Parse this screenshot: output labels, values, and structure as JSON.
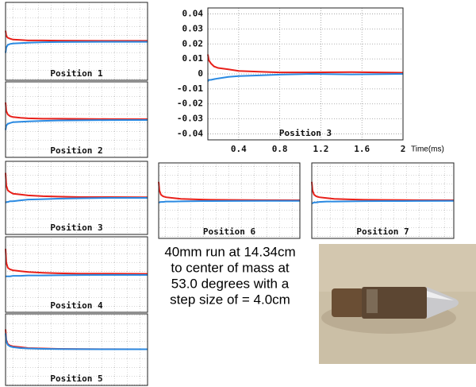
{
  "chart_data": [
    {
      "type": "line",
      "title": "Position 1",
      "x": [
        0.1,
        0.11,
        0.13,
        0.16,
        0.2,
        0.3,
        0.4,
        0.6,
        0.8,
        1.1,
        1.5,
        2.0
      ],
      "xlim": [
        0.1,
        2
      ],
      "ylim": [
        -0.044,
        0.044
      ],
      "grid": true,
      "series": [
        {
          "color": "#e8201a",
          "values": [
            0.012,
            0.006,
            0.004,
            0.003,
            0.002,
            0.0015,
            0.001,
            0.001,
            0.0008,
            0.0006,
            0.0005,
            0.0005
          ]
        },
        {
          "color": "#2b8ae2",
          "values": [
            -0.013,
            -0.007,
            -0.004,
            -0.003,
            -0.0025,
            -0.002,
            -0.0015,
            -0.001,
            -0.0008,
            -0.0006,
            -0.0005,
            -0.0005
          ]
        }
      ]
    },
    {
      "type": "line",
      "title": "Position 2",
      "x": [
        0.1,
        0.11,
        0.13,
        0.16,
        0.2,
        0.3,
        0.4,
        0.6,
        0.8,
        1.1,
        1.5,
        2.0
      ],
      "xlim": [
        0.1,
        2
      ],
      "ylim": [
        -0.044,
        0.044
      ],
      "grid": true,
      "series": [
        {
          "color": "#e8201a",
          "values": [
            0.02,
            0.01,
            0.006,
            0.004,
            0.003,
            0.002,
            0.0015,
            0.001,
            0.001,
            0.0008,
            0.0006,
            0.0005
          ]
        },
        {
          "color": "#2b8ae2",
          "values": [
            -0.012,
            -0.007,
            -0.005,
            -0.004,
            -0.003,
            -0.0025,
            -0.002,
            -0.0015,
            -0.001,
            -0.0008,
            -0.0006,
            -0.0005
          ]
        }
      ]
    },
    {
      "type": "line",
      "title": "Position 3",
      "x": [
        0.1,
        0.11,
        0.13,
        0.16,
        0.2,
        0.3,
        0.4,
        0.6,
        0.8,
        1.1,
        1.5,
        2.0
      ],
      "xlim": [
        0.1,
        2
      ],
      "ylim": [
        -0.044,
        0.044
      ],
      "grid": true,
      "series": [
        {
          "color": "#e8201a",
          "values": [
            0.03,
            0.015,
            0.009,
            0.007,
            0.005,
            0.004,
            0.003,
            0.002,
            0.0015,
            0.001,
            0.001,
            0.0008
          ]
        },
        {
          "color": "#2b8ae2",
          "values": [
            -0.006,
            -0.005,
            -0.005,
            -0.004,
            -0.004,
            -0.003,
            -0.002,
            -0.0015,
            -0.001,
            -0.0005,
            0,
            0
          ]
        }
      ]
    },
    {
      "type": "line",
      "title": "Position 4",
      "x": [
        0.1,
        0.11,
        0.13,
        0.16,
        0.2,
        0.3,
        0.4,
        0.6,
        0.8,
        1.1,
        1.5,
        2.0
      ],
      "xlim": [
        0.1,
        2
      ],
      "ylim": [
        -0.044,
        0.044
      ],
      "grid": true,
      "series": [
        {
          "color": "#e8201a",
          "values": [
            0.03,
            0.014,
            0.008,
            0.006,
            0.005,
            0.004,
            0.003,
            0.002,
            0.0015,
            0.001,
            0.001,
            0.0008
          ]
        },
        {
          "color": "#2b8ae2",
          "values": [
            -0.002,
            -0.002,
            -0.002,
            -0.002,
            -0.0015,
            -0.0015,
            -0.001,
            -0.001,
            -0.0008,
            -0.0006,
            -0.0005,
            -0.0005
          ]
        }
      ]
    },
    {
      "type": "line",
      "title": "Position 5",
      "x": [
        0.1,
        0.11,
        0.13,
        0.16,
        0.2,
        0.3,
        0.4,
        0.6,
        0.8,
        1.1,
        1.5,
        2.0
      ],
      "xlim": [
        0.1,
        2
      ],
      "ylim": [
        -0.044,
        0.044
      ],
      "grid": true,
      "series": [
        {
          "color": "#e8201a",
          "values": [
            0.025,
            0.012,
            0.007,
            0.005,
            0.004,
            0.003,
            0.002,
            0.0015,
            0.001,
            0.0008,
            0.0006,
            0.0005
          ]
        },
        {
          "color": "#2b8ae2",
          "values": [
            0.02,
            0.01,
            0.006,
            0.004,
            0.003,
            0.002,
            0.0015,
            0.001,
            0.0008,
            0.0006,
            0.0005,
            0.0005
          ]
        }
      ]
    },
    {
      "type": "line",
      "title": "Position 3",
      "x": [
        0.1,
        0.11,
        0.13,
        0.16,
        0.2,
        0.3,
        0.4,
        0.6,
        0.8,
        1.1,
        1.5,
        2.0
      ],
      "xlim": [
        0.1,
        2
      ],
      "ylim": [
        -0.044,
        0.044
      ],
      "grid": true,
      "x_label": "Time(ms)",
      "xticks": [
        0.4,
        0.8,
        1.2,
        1.6,
        2
      ],
      "yticks": [
        -0.04,
        -0.03,
        -0.02,
        -0.01,
        0,
        0.01,
        0.02,
        0.03,
        0.04
      ],
      "series": [
        {
          "color": "#e8201a",
          "values": [
            0.013,
            0.009,
            0.007,
            0.005,
            0.004,
            0.003,
            0.002,
            0.0015,
            0.001,
            0.001,
            0.0012,
            0.0008
          ]
        },
        {
          "color": "#2b8ae2",
          "values": [
            -0.005,
            -0.004,
            -0.004,
            -0.0035,
            -0.003,
            -0.002,
            -0.0015,
            -0.001,
            -0.0005,
            0,
            -0.0003,
            0
          ]
        }
      ]
    },
    {
      "type": "line",
      "title": "Position 6",
      "x": [
        0.1,
        0.11,
        0.13,
        0.16,
        0.2,
        0.3,
        0.4,
        0.6,
        0.8,
        1.1,
        1.5,
        2.0
      ],
      "xlim": [
        0.1,
        2
      ],
      "ylim": [
        -0.044,
        0.044
      ],
      "grid": true,
      "series": [
        {
          "color": "#e8201a",
          "values": [
            0.022,
            0.012,
            0.007,
            0.005,
            0.004,
            0.003,
            0.002,
            0.0015,
            0.001,
            0.0008,
            0.0006,
            0.0005
          ]
        },
        {
          "color": "#2b8ae2",
          "values": [
            -0.002,
            -0.002,
            -0.0015,
            -0.0015,
            -0.001,
            -0.001,
            -0.0008,
            -0.0006,
            -0.0005,
            -0.0004,
            -0.0003,
            -0.0003
          ]
        }
      ]
    },
    {
      "type": "line",
      "title": "Position 7",
      "x": [
        0.1,
        0.11,
        0.13,
        0.16,
        0.2,
        0.3,
        0.4,
        0.6,
        0.8,
        1.1,
        1.5,
        2.0
      ],
      "xlim": [
        0.1,
        2
      ],
      "ylim": [
        -0.044,
        0.044
      ],
      "grid": true,
      "series": [
        {
          "color": "#e8201a",
          "values": [
            0.022,
            0.012,
            0.007,
            0.005,
            0.004,
            0.003,
            0.002,
            0.0015,
            0.001,
            0.0008,
            0.0006,
            0.0005
          ]
        },
        {
          "color": "#2b8ae2",
          "values": [
            -0.003,
            -0.003,
            -0.002,
            -0.002,
            -0.0015,
            -0.001,
            -0.001,
            -0.0008,
            -0.0006,
            -0.0005,
            -0.0004,
            -0.0003
          ]
        }
      ]
    }
  ],
  "caption": [
    "40mm run at 14.34cm",
    "to center of mass at",
    "53.0 degrees with a",
    "step size of = 4.0cm"
  ]
}
